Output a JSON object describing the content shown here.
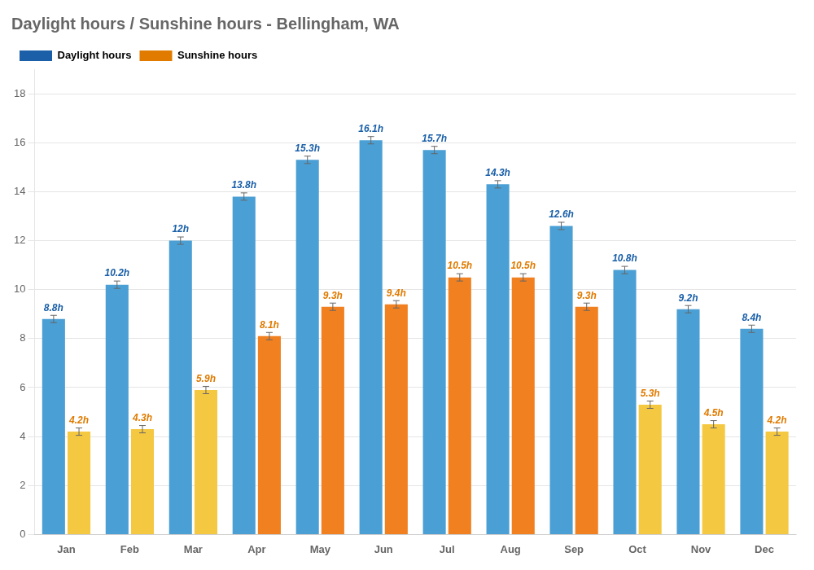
{
  "chart_data": {
    "type": "bar",
    "title": "Daylight hours / Sunshine hours - Bellingham, WA",
    "categories": [
      "Jan",
      "Feb",
      "Mar",
      "Apr",
      "May",
      "Jun",
      "Jul",
      "Aug",
      "Sep",
      "Oct",
      "Nov",
      "Dec"
    ],
    "series": [
      {
        "name": "Daylight hours",
        "color": "#1a5fa8",
        "colors": [
          "#4a9fd4",
          "#4a9fd4",
          "#4a9fd4",
          "#4a9fd4",
          "#4a9fd4",
          "#4a9fd4",
          "#4a9fd4",
          "#4a9fd4",
          "#4a9fd4",
          "#4a9fd4",
          "#4a9fd4",
          "#4a9fd4"
        ],
        "values": [
          8.8,
          10.2,
          12.0,
          13.8,
          15.3,
          16.1,
          15.7,
          14.3,
          12.6,
          10.8,
          9.2,
          8.4
        ],
        "value_labels": [
          "8.8h",
          "10.2h",
          "12h",
          "13.8h",
          "15.3h",
          "16.1h",
          "15.7h",
          "14.3h",
          "12.6h",
          "10.8h",
          "9.2h",
          "8.4h"
        ],
        "errors": [
          0.15,
          0.15,
          0.15,
          0.15,
          0.15,
          0.15,
          0.15,
          0.15,
          0.15,
          0.15,
          0.15,
          0.15
        ]
      },
      {
        "name": "Sunshine hours",
        "color": "#e07b00",
        "colors": [
          "#f5c842",
          "#f5c842",
          "#f5c842",
          "#f08020",
          "#f08020",
          "#f08020",
          "#f08020",
          "#f08020",
          "#f08020",
          "#f5c842",
          "#f5c842",
          "#f5c842"
        ],
        "values": [
          4.2,
          4.3,
          5.9,
          8.1,
          9.3,
          9.4,
          10.5,
          10.5,
          9.3,
          5.3,
          4.5,
          4.2
        ],
        "value_labels": [
          "4.2h",
          "4.3h",
          "5.9h",
          "8.1h",
          "9.3h",
          "9.4h",
          "10.5h",
          "10.5h",
          "9.3h",
          "5.3h",
          "4.5h",
          "4.2h"
        ],
        "errors": [
          0.15,
          0.15,
          0.15,
          0.15,
          0.15,
          0.15,
          0.15,
          0.15,
          0.15,
          0.15,
          0.15,
          0.15
        ]
      }
    ],
    "ylim": [
      0,
      19
    ],
    "yticks": [
      0,
      2,
      4,
      6,
      8,
      10,
      12,
      14,
      16,
      18
    ],
    "grid": true,
    "legend": "upper left",
    "data_labels": true
  }
}
